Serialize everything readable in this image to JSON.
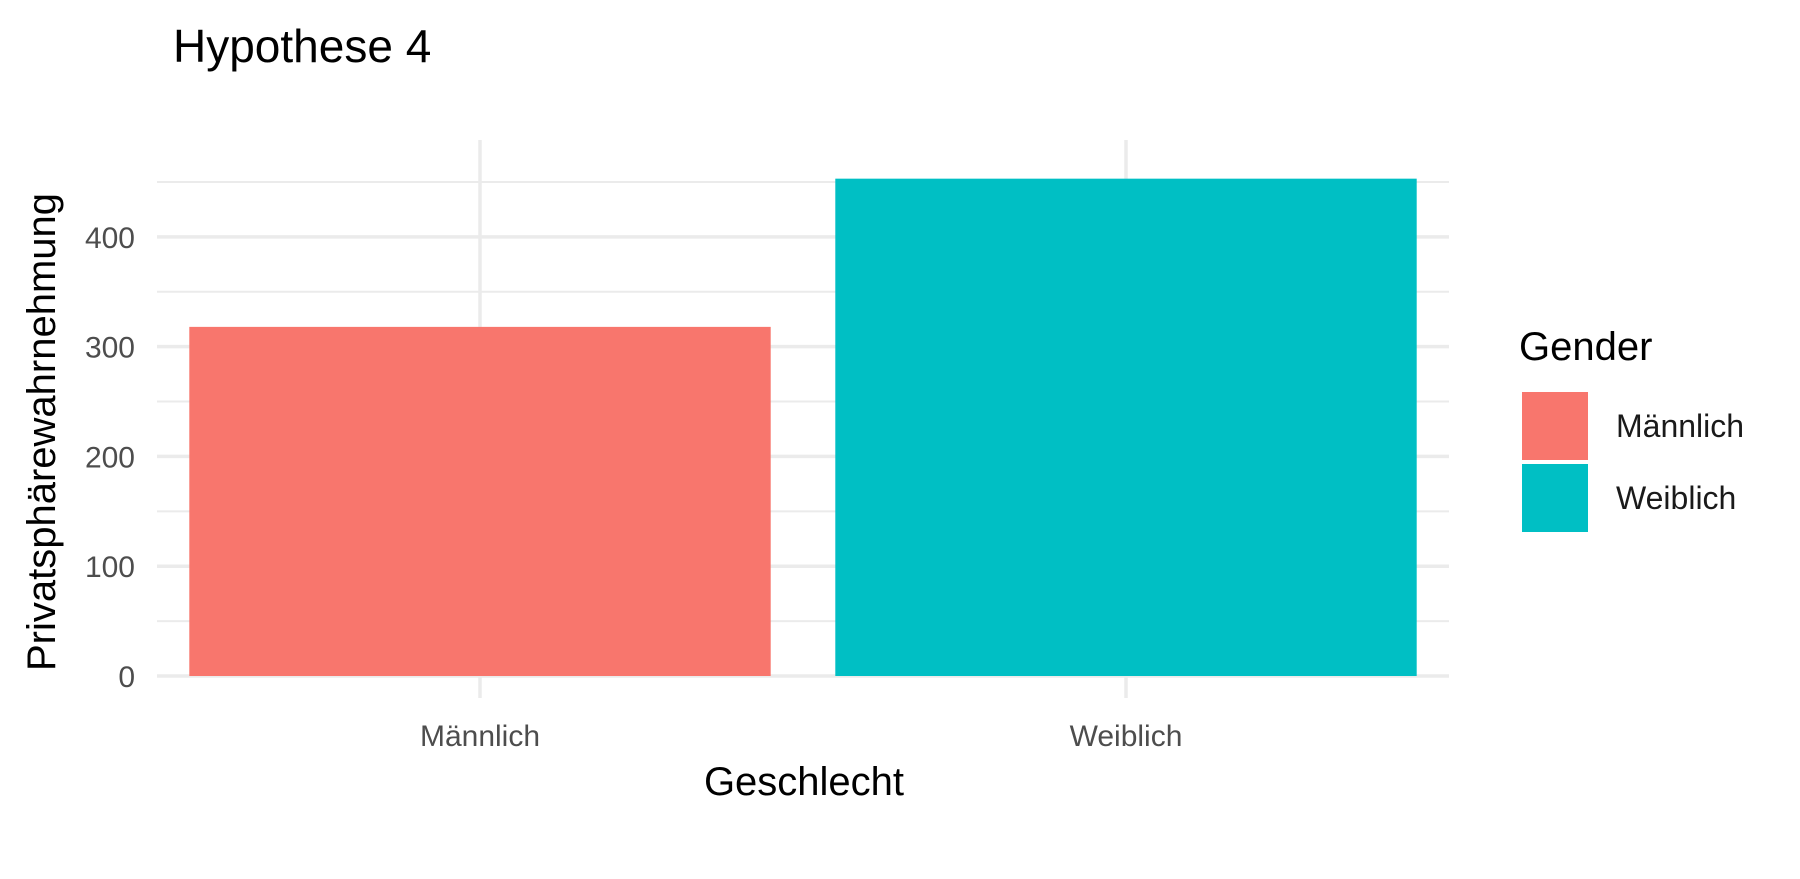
{
  "chart_data": {
    "type": "bar",
    "title": "Hypothese 4",
    "xlabel": "Geschlecht",
    "ylabel": "Privatsphärewahrnehmung",
    "categories": [
      "Männlich",
      "Weiblich"
    ],
    "values": [
      318,
      453
    ],
    "colors": [
      "#F8766D",
      "#00BFC4"
    ],
    "ylim": [
      0,
      470
    ],
    "yticks": [
      0,
      100,
      200,
      300,
      400
    ],
    "grid": true,
    "legend": {
      "title": "Gender",
      "position": "right",
      "entries": [
        "Männlich",
        "Weiblich"
      ]
    }
  }
}
